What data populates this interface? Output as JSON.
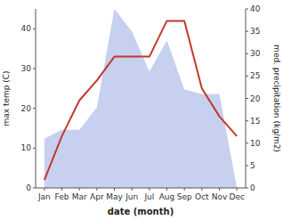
{
  "chart_data": {
    "type": "line",
    "categories": [
      "Jan",
      "Feb",
      "Mar",
      "Apr",
      "May",
      "Jun",
      "Jul",
      "Aug",
      "Sep",
      "Oct",
      "Nov",
      "Dec"
    ],
    "xlabel": "date (month)",
    "ylabel": "max temp (C)",
    "y2label": "med. precipitation (kg/m2)",
    "series": [
      {
        "type": "area",
        "axis": "y2",
        "color": "#c8d0f0",
        "values": [
          11,
          13,
          13,
          18,
          40,
          35,
          26,
          33,
          22,
          21,
          21,
          0
        ]
      },
      {
        "type": "line",
        "color": "#c0392b",
        "values": [
          2,
          13,
          22,
          27,
          33,
          33,
          33,
          42,
          42,
          25,
          18,
          13
        ]
      }
    ],
    "ylim": [
      0,
      45
    ],
    "yticks": [
      0,
      10,
      20,
      30,
      40
    ],
    "y2lim": [
      0,
      40
    ],
    "y2ticks": [
      0,
      5,
      10,
      15,
      20,
      25,
      30,
      35,
      40
    ],
    "grid": false
  }
}
